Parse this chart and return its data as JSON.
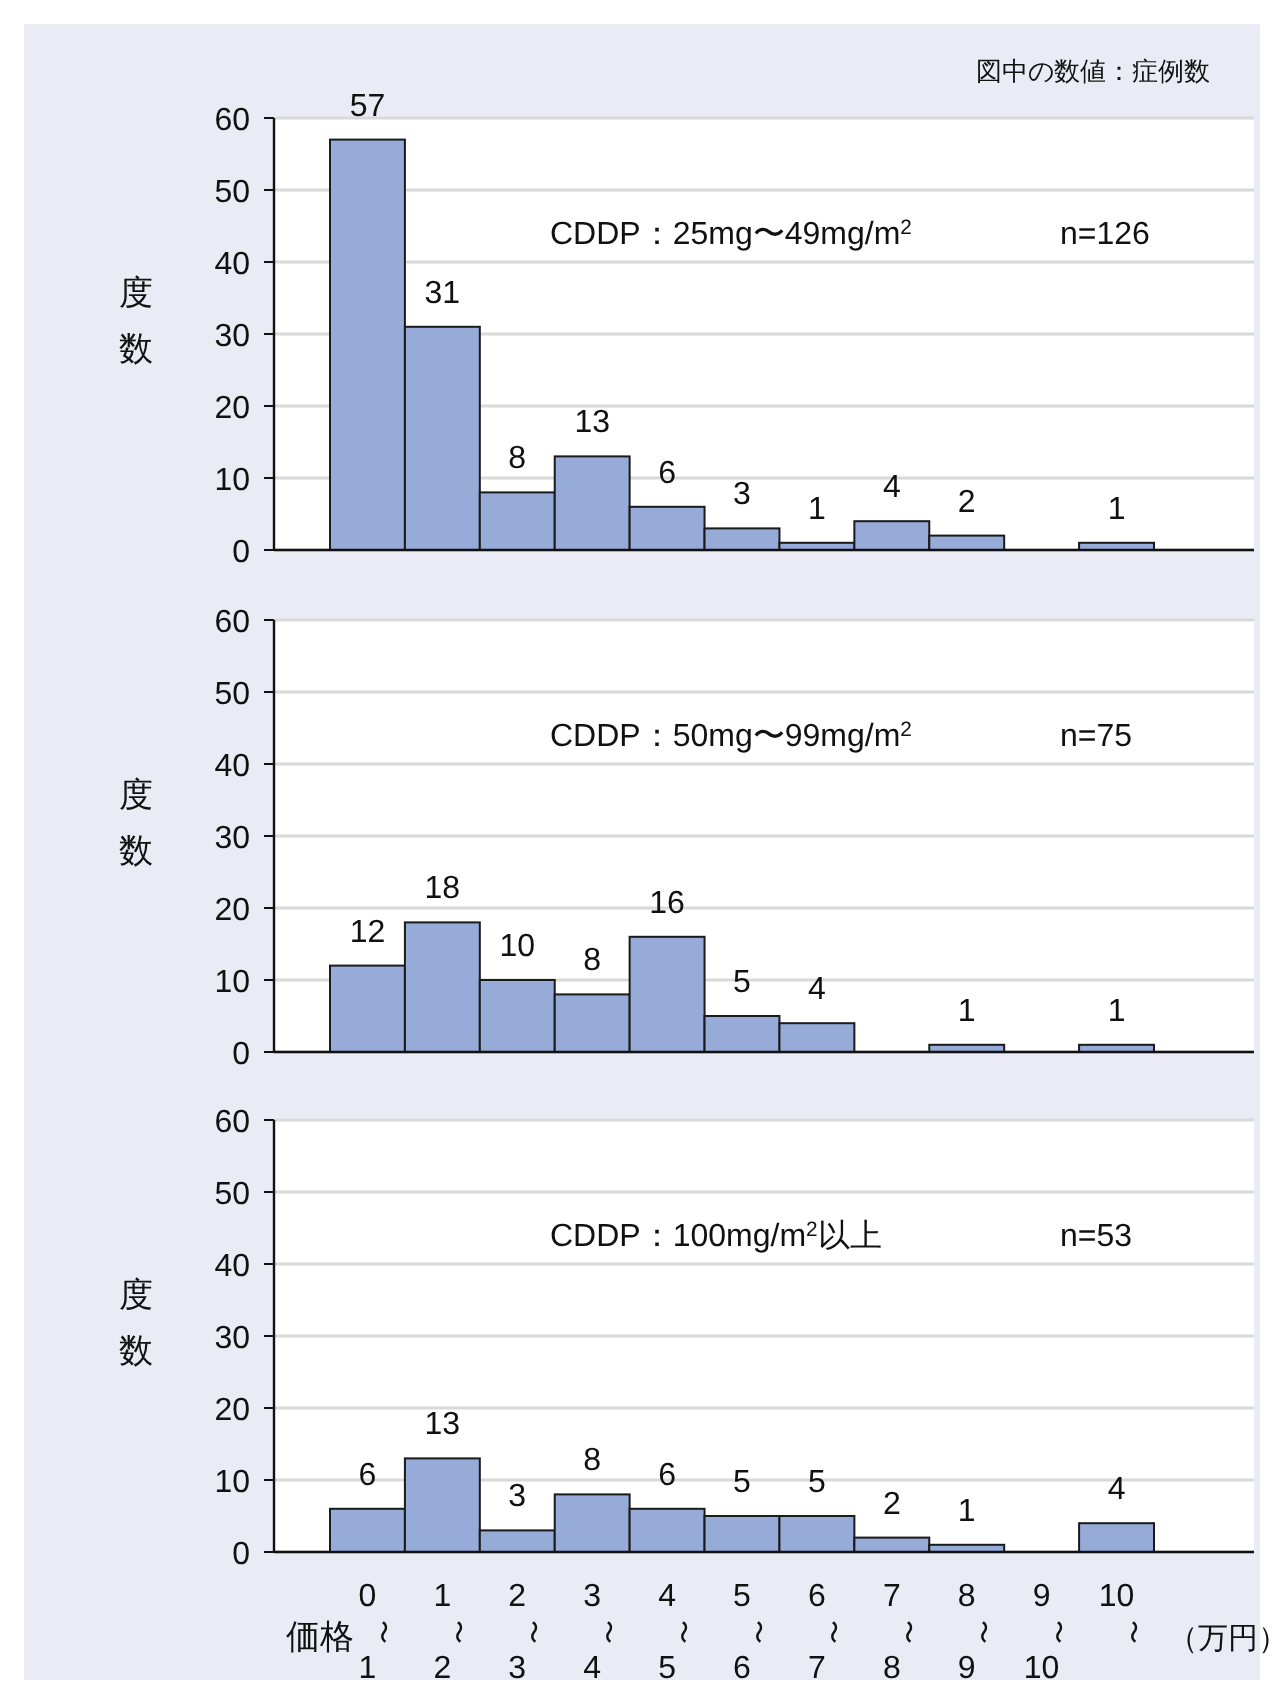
{
  "chart_data": [
    {
      "type": "bar",
      "categories": [
        "0〜1",
        "1〜2",
        "2〜3",
        "3〜4",
        "4〜5",
        "5〜6",
        "6〜7",
        "7〜8",
        "8〜9",
        "9〜10",
        "10〜"
      ],
      "values": [
        57,
        31,
        8,
        13,
        6,
        3,
        1,
        4,
        2,
        0,
        1
      ],
      "value_labels": [
        "57",
        "31",
        "8",
        "13",
        "6",
        "3",
        "1",
        "4",
        "2",
        null,
        "1"
      ],
      "color": "#97abd8",
      "ylabel": "度数",
      "ylim": [
        0,
        60
      ],
      "yticks": [
        0,
        10,
        20,
        30,
        40,
        50,
        60
      ],
      "grid": "y",
      "tick_labels": "y",
      "annotations": [
        "図中の数値：症例数",
        "CDDP：25mg〜49mg/m$^{2}$",
        "n=126"
      ]
    },
    {
      "type": "bar",
      "categories": [
        "0〜1",
        "1〜2",
        "2〜3",
        "3〜4",
        "4〜5",
        "5〜6",
        "6〜7",
        "7〜8",
        "8〜9",
        "9〜10",
        "10〜"
      ],
      "values": [
        12,
        18,
        10,
        8,
        16,
        5,
        4,
        0,
        1,
        0,
        1
      ],
      "value_labels": [
        "12",
        "18",
        "10",
        "8",
        "16",
        "5",
        "4",
        null,
        "1",
        null,
        "1"
      ],
      "color": "#97abd8",
      "ylabel": "度数",
      "ylim": [
        0,
        60
      ],
      "yticks": [
        0,
        10,
        20,
        30,
        40,
        50,
        60
      ],
      "grid": "y",
      "tick_labels": "y",
      "annotations": [
        "CDDP：50mg〜99mg/m$^{2}$",
        "n=75"
      ]
    },
    {
      "type": "bar",
      "categories": [
        "0〜1",
        "1〜2",
        "2〜3",
        "3〜4",
        "4〜5",
        "5〜6",
        "6〜7",
        "7〜8",
        "8〜9",
        "9〜10",
        "10〜"
      ],
      "values": [
        6,
        13,
        3,
        8,
        6,
        5,
        5,
        2,
        1,
        0,
        4
      ],
      "value_labels": [
        "6",
        "13",
        "3",
        "8",
        "6",
        "5",
        "5",
        "2",
        "1",
        null,
        "4"
      ],
      "color": "#97abd8",
      "ylabel": "度数",
      "xlabel": "価格",
      "ylim": [
        0,
        60
      ],
      "yticks": [
        0,
        10,
        20,
        30,
        40,
        50,
        60
      ],
      "grid": "y",
      "annotations": [
        "CDDP：100mg/m$^{2}$以上",
        "n=53",
        "（万円）"
      ]
    }
  ]
}
